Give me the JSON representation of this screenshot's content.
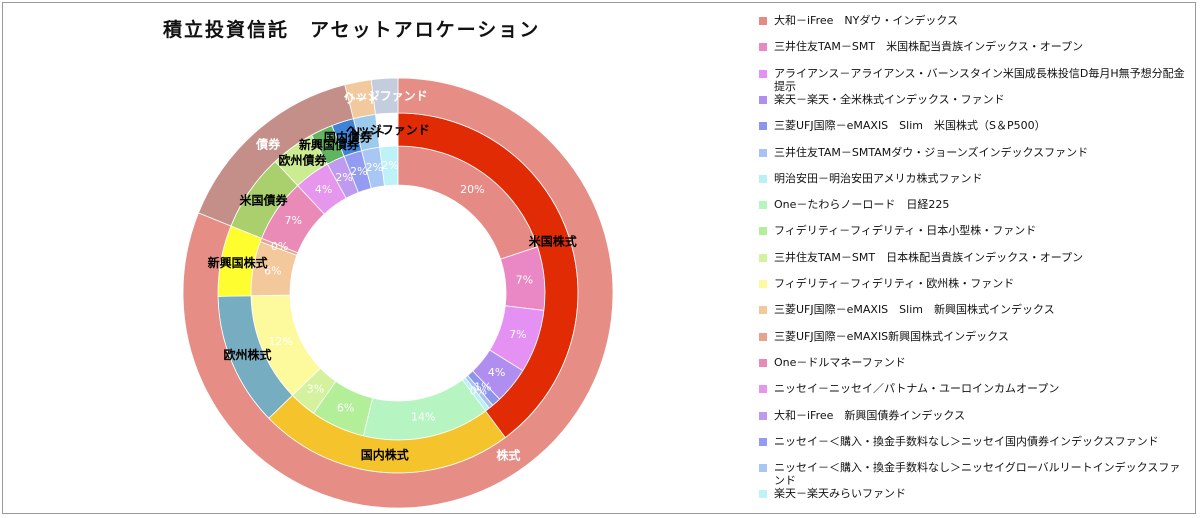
{
  "chart_data": {
    "type": "donut",
    "title": "積立投資信託　アセットアロケーション",
    "inner_ring": {
      "name": "",
      "slices": [
        {
          "label": "大和－iFree　NYダウ・インデックス",
          "value": 20,
          "data_label": "20%",
          "color": "#e58a85"
        },
        {
          "label": "三井住友TAM－SMT　米国株配当貴族インデックス・オープン",
          "value": 7,
          "data_label": "7%",
          "color": "#ea88c6"
        },
        {
          "label": "アライアンス－アライアンス・バーンスタイン米国成長株投信D毎月H無予想分配金提示",
          "value": 7,
          "data_label": "7%",
          "color": "#e491f3"
        },
        {
          "label": "楽天－楽天・全米株式インデックス・ファンド",
          "value": 4,
          "data_label": "4%",
          "color": "#b08ef0"
        },
        {
          "label": "三菱UFJ国際－eMAXIS　Slim　米国株式（S＆P500）",
          "value": 1,
          "data_label": "1%",
          "color": "#8d94ec"
        },
        {
          "label": "三井住友TAM－SMTAMダウ・ジョーンズインデックスファンド",
          "value": 0.5,
          "data_label": "0%",
          "color": "#a7c2f3"
        },
        {
          "label": "明治安田－明治安田アメリカ株式ファンド",
          "value": 0.5,
          "data_label": "",
          "color": "#b6f1f6"
        },
        {
          "label": "One－たわらノーロード　日経225",
          "value": 14,
          "data_label": "14%",
          "color": "#b6f5c2"
        },
        {
          "label": "フィデリティ－フィデリティ・日本小型株・ファンド",
          "value": 6,
          "data_label": "6%",
          "color": "#b3ef99"
        },
        {
          "label": "三井住友TAM－SMT　日本株配当貴族インデックス・オープン",
          "value": 3,
          "data_label": "3%",
          "color": "#d4f29d"
        },
        {
          "label": "フィデリティ－フィデリティ・欧州株・ファンド",
          "value": 12,
          "data_label": "12%",
          "color": "#fdfa9e"
        },
        {
          "label": "三菱UFJ国際－eMAXIS　Slim　新興国株式インデックス",
          "value": 6,
          "data_label": "6%",
          "color": "#f3c89b"
        },
        {
          "label": "三菱UFJ国際－eMAXIS新興国株式インデックス",
          "value": 0.4,
          "data_label": "0%",
          "color": "#e6a48e"
        },
        {
          "label": "One－ドルマネーファンド",
          "value": 7,
          "data_label": "7%",
          "color": "#e98bb6"
        },
        {
          "label": "ニッセイ－ニッセイ／パトナム・ユーロインカムオープン",
          "value": 4,
          "data_label": "4%",
          "color": "#e796ee"
        },
        {
          "label": "大和－iFree　新興国債券インデックス",
          "value": 2,
          "data_label": "2%",
          "color": "#bf9bf0"
        },
        {
          "label": "ニッセイ－＜購入・換金手数料なし＞ニッセイ国内債券インデックスファンド",
          "value": 2,
          "data_label": "2%",
          "color": "#939cf0"
        },
        {
          "label": "ニッセイ－＜購入・換金手数料なし＞ニッセイグローバルリートインデックスファンド",
          "value": 2,
          "data_label": "2%",
          "color": "#a9c7f5"
        },
        {
          "label": "楽天－楽天みらいファンド",
          "value": 2,
          "data_label": "2%",
          "color": "#bdf2f7"
        }
      ]
    },
    "middle_ring": {
      "slices": [
        {
          "label": "米国株式",
          "value": 40,
          "color": "#e02b04"
        },
        {
          "label": "国内株式",
          "value": 23,
          "color": "#f5c42c"
        },
        {
          "label": "欧州株式",
          "value": 12,
          "color": "#76adc0"
        },
        {
          "label": "新興国株式",
          "value": 6.4,
          "color": "#fdfd30"
        },
        {
          "label": "米国債券",
          "value": 7,
          "color": "#a9d06d"
        },
        {
          "label": "欧州債券",
          "value": 4,
          "color": "#ccec91"
        },
        {
          "label": "新興国債券",
          "value": 2,
          "color": "#62b560"
        },
        {
          "label": "国内債券",
          "value": 2,
          "color": "#3f83d9"
        },
        {
          "label": "リート",
          "value": 2,
          "color": "#9ccbed"
        },
        {
          "label": "ヘッジファンド",
          "value": 2,
          "color": "#ffffff"
        }
      ]
    },
    "outer_ring": {
      "slices": [
        {
          "label": "株式",
          "value": 81.4,
          "color": "#e68e86"
        },
        {
          "label": "債券",
          "value": 15,
          "color": "#c48f88"
        },
        {
          "label": "リート",
          "value": 2,
          "color": "#f2c99d"
        },
        {
          "label": "ヘッジファンド",
          "value": 2,
          "color": "#c4cdde"
        }
      ]
    },
    "legend_position": "right",
    "grid": false
  }
}
